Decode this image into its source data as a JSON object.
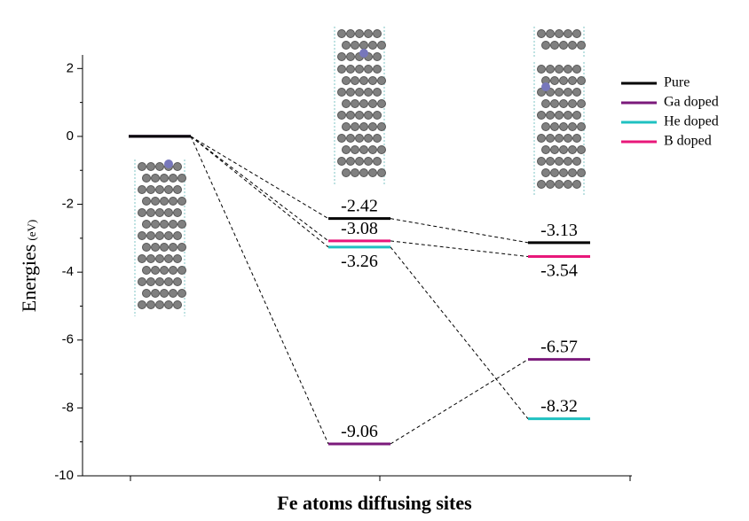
{
  "chart_data": {
    "type": "energy-levels",
    "x_label": "Fe atoms diffusing sites",
    "y_label": "Energies",
    "y_label_unit": "(eV)",
    "categories": [
      null,
      null,
      null
    ],
    "series": [
      {
        "name": "Pure",
        "color": "#000000",
        "values": [
          0,
          -2.42,
          -3.13
        ]
      },
      {
        "name": "Ga doped",
        "color": "#7b1a7b",
        "values": [
          0,
          -9.06,
          -6.57
        ]
      },
      {
        "name": "He doped",
        "color": "#1fc1c1",
        "values": [
          0,
          -3.26,
          -8.32
        ]
      },
      {
        "name": "B doped",
        "color": "#e8177a",
        "values": [
          0,
          -3.08,
          -3.54
        ]
      }
    ],
    "ylim": [
      -10,
      2.4
    ],
    "yticks": [
      -10,
      -8,
      -6,
      -4,
      -2,
      0,
      2
    ]
  }
}
